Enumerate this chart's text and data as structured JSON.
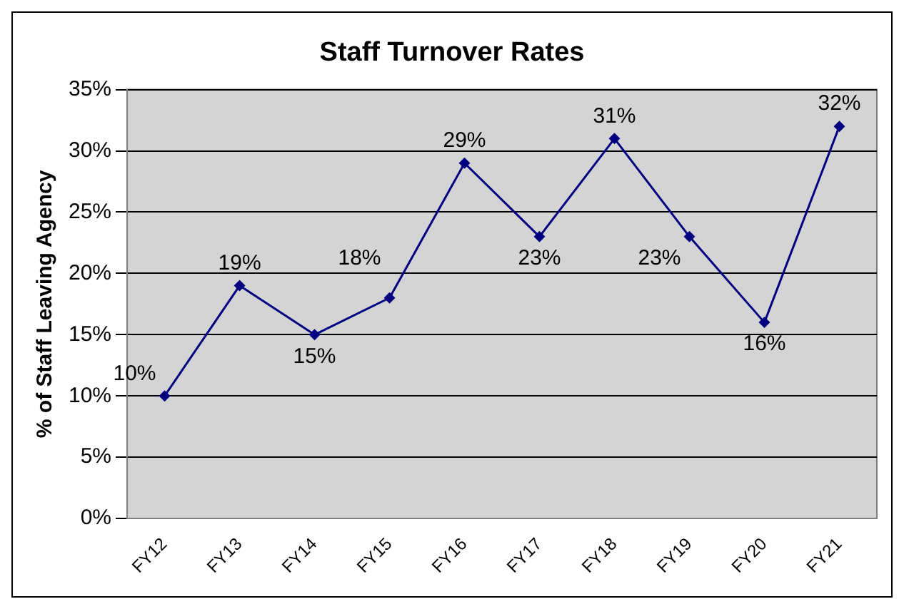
{
  "chart_data": {
    "type": "line",
    "title": "Staff Turnover Rates",
    "ylabel": "% of Staff Leaving Agency",
    "categories": [
      "FY12",
      "FY13",
      "FY14",
      "FY15",
      "FY16",
      "FY17",
      "FY18",
      "FY19",
      "FY20",
      "FY21"
    ],
    "series": [
      {
        "color": "#000080",
        "values": [
          10,
          19,
          15,
          18,
          29,
          23,
          31,
          23,
          16,
          32
        ]
      }
    ],
    "value_labels": [
      "10%",
      "19%",
      "15%",
      "18%",
      "29%",
      "23%",
      "31%",
      "23%",
      "16%",
      "32%"
    ],
    "ylim": [
      0,
      35
    ],
    "yticks": [
      {
        "value": 0,
        "label": "0%"
      },
      {
        "value": 5,
        "label": "5%"
      },
      {
        "value": 10,
        "label": "10%"
      },
      {
        "value": 15,
        "label": "15%"
      },
      {
        "value": 20,
        "label": "20%"
      },
      {
        "value": 25,
        "label": "25%"
      },
      {
        "value": 30,
        "label": "30%"
      },
      {
        "value": 35,
        "label": "35%"
      }
    ],
    "grid": "y",
    "legend": false,
    "marker": "diamond",
    "line_style": "solid"
  }
}
